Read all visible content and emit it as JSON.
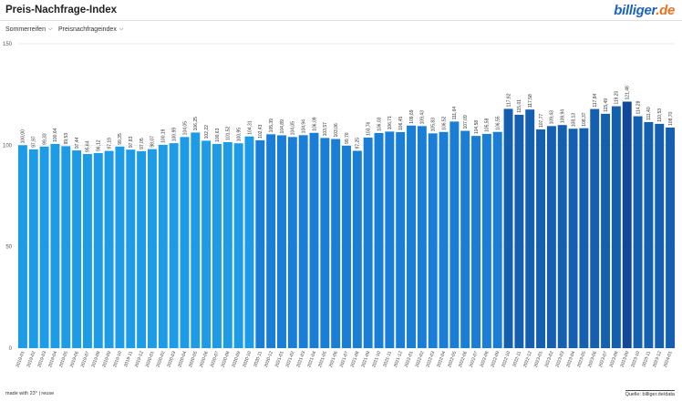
{
  "header": {
    "title": "Preis-Nachfrage-Index",
    "logo_part1": "billiger",
    "logo_part2": ".de"
  },
  "filters": {
    "category": "Sommerreifen",
    "metric": "Preisnachfrageindex"
  },
  "footer": {
    "made_with": "made with 23° | reuse",
    "source": "Quelle: billiger.de/data"
  },
  "colors": {
    "bar_light": "#1e9be6",
    "bar_mid": "#1a7ed6",
    "bar_dark": "#155fb0",
    "bar_darkest": "#12489a"
  },
  "chart_data": {
    "type": "bar",
    "title": "Preis-Nachfrage-Index",
    "ylim": [
      0,
      150
    ],
    "yticks": [
      0,
      50,
      100,
      150
    ],
    "grid": true,
    "categories": [
      "2019-01",
      "2019-02",
      "2019-03",
      "2019-04",
      "2019-05",
      "2019-06",
      "2019-07",
      "2019-08",
      "2019-09",
      "2019-10",
      "2019-11",
      "2019-12",
      "2020-01",
      "2020-02",
      "2020-03",
      "2020-04",
      "2020-05",
      "2020-06",
      "2020-07",
      "2020-08",
      "2020-09",
      "2020-10",
      "2020-11",
      "2020-12",
      "2021-01",
      "2021-02",
      "2021-03",
      "2021-04",
      "2021-05",
      "2021-06",
      "2021-07",
      "2021-08",
      "2021-09",
      "2021-10",
      "2021-11",
      "2021-12",
      "2022-01",
      "2022-02",
      "2022-03",
      "2022-04",
      "2022-05",
      "2022-06",
      "2022-07",
      "2022-08",
      "2022-09",
      "2022-10",
      "2022-11",
      "2022-12",
      "2023-01",
      "2023-02",
      "2023-03",
      "2023-04",
      "2023-05",
      "2023-06",
      "2023-07",
      "2023-08",
      "2023-09",
      "2023-10",
      "2023-11",
      "2023-12",
      "2024-01"
    ],
    "labels": [
      "100,00",
      "97,97",
      "99,33",
      "100,64",
      "99,53",
      "97,44",
      "95,64",
      "96,12",
      "97,19",
      "99,35",
      "97,83",
      "97,05",
      "98,07",
      "100,19",
      "100,99",
      "104,05",
      "106,25",
      "102,22",
      "100,63",
      "101,52",
      "100,95",
      "104,31",
      "102,43",
      "105,39",
      "104,89",
      "104,05",
      "104,94",
      "106,09",
      "103,57",
      "103,06",
      "99,76",
      "97,25",
      "103,76",
      "106,03",
      "106,71",
      "106,45",
      "109,69",
      "109,43",
      "105,83",
      "106,52",
      "111,64",
      "107,09",
      "104,58",
      "105,58",
      "106,55",
      "117,92",
      "115,01",
      "117,58",
      "107,77",
      "109,43",
      "109,94",
      "108,13",
      "108,37",
      "117,84",
      "115,49",
      "119,20",
      "121,48",
      "114,28",
      "111,40",
      "110,53",
      "108,70"
    ],
    "values": [
      100.0,
      97.97,
      99.33,
      100.64,
      99.53,
      97.44,
      95.64,
      96.12,
      97.19,
      99.35,
      97.83,
      97.05,
      98.07,
      100.19,
      100.99,
      104.05,
      106.25,
      102.22,
      100.63,
      101.52,
      100.95,
      104.31,
      102.43,
      105.39,
      104.89,
      104.05,
      104.94,
      106.09,
      103.57,
      103.06,
      99.76,
      97.25,
      103.76,
      106.03,
      106.71,
      106.45,
      109.69,
      109.43,
      105.83,
      106.52,
      111.64,
      107.09,
      104.58,
      105.58,
      106.55,
      117.92,
      115.01,
      117.58,
      107.77,
      109.43,
      109.94,
      108.13,
      108.37,
      117.84,
      115.49,
      119.2,
      121.48,
      114.28,
      111.4,
      110.53,
      108.7
    ]
  }
}
